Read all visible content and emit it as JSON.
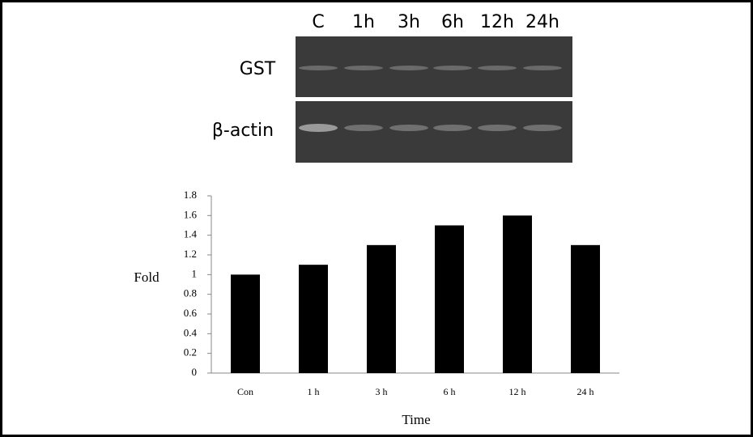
{
  "gel": {
    "lanes": [
      "C",
      "1h",
      "3h",
      "6h",
      "12h",
      "24h"
    ],
    "rows": [
      "GST",
      "β-actin"
    ]
  },
  "chart_data": {
    "type": "bar",
    "categories": [
      "Con",
      "1 h",
      "3 h",
      "6 h",
      "12 h",
      "24 h"
    ],
    "values": [
      1.0,
      1.1,
      1.3,
      1.5,
      1.6,
      1.3
    ],
    "color": "#000000",
    "ylim": [
      0,
      1.8
    ],
    "yticks": [
      0,
      0.2,
      0.4,
      0.6,
      0.8,
      1,
      1.2,
      1.4,
      1.6,
      1.8
    ],
    "x_label": "Time",
    "y_label": "Fold",
    "grid": false
  }
}
